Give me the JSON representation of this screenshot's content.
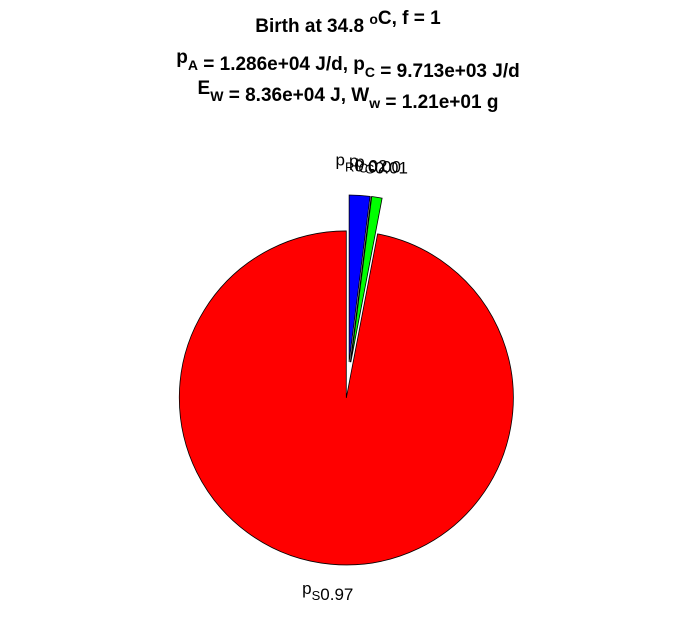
{
  "chart_data": {
    "type": "pie",
    "title_lines": [
      [
        {
          "text": "Birth at 34.8 "
        },
        {
          "text": "o",
          "script": "sup"
        },
        {
          "text": "C, f = 1"
        }
      ],
      [
        {
          "text": "p"
        },
        {
          "text": "A",
          "script": "sub"
        },
        {
          "text": " = 1.286e+04 J/d, p"
        },
        {
          "text": "C",
          "script": "sub"
        },
        {
          "text": " = 9.713e+03 J/d"
        }
      ],
      [
        {
          "text": "E"
        },
        {
          "text": "W",
          "script": "sub"
        },
        {
          "text": " = 8.36e+04 J, W"
        },
        {
          "text": "w",
          "script": "sub"
        },
        {
          "text": " = 1.21e+01 g"
        }
      ]
    ],
    "categories": [
      "p",
      "p",
      "p",
      "p"
    ],
    "category_subscripts": [
      "R",
      "C",
      "G",
      "S"
    ],
    "values": [
      0.02,
      0.0,
      0.01,
      0.97
    ],
    "value_labels": [
      "0.02",
      "0.00",
      "0.01",
      "0.97"
    ],
    "colors": [
      "#0000ff",
      "#202020",
      "#00ff00",
      "#ff0000"
    ],
    "explode": true
  }
}
